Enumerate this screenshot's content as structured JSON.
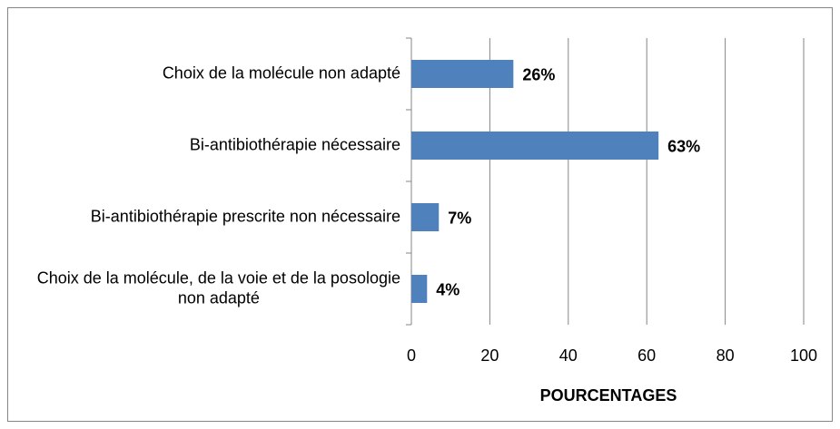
{
  "chart_data": {
    "type": "bar",
    "orientation": "horizontal",
    "categories": [
      "Choix de la molécule non adapté",
      "Bi-antibiothérapie nécessaire",
      "Bi-antibiothérapie prescrite non nécessaire",
      "Choix de la molécule, de la voie et de la posologie non adapté"
    ],
    "values": [
      26,
      63,
      7,
      4
    ],
    "value_labels": [
      "26%",
      "63%",
      "7%",
      "4%"
    ],
    "color": "#4f81bd",
    "xlim": [
      0,
      100
    ],
    "xticks": [
      0,
      20,
      40,
      60,
      80,
      100
    ],
    "xlabel": "POURCENTAGES",
    "grid": true
  }
}
